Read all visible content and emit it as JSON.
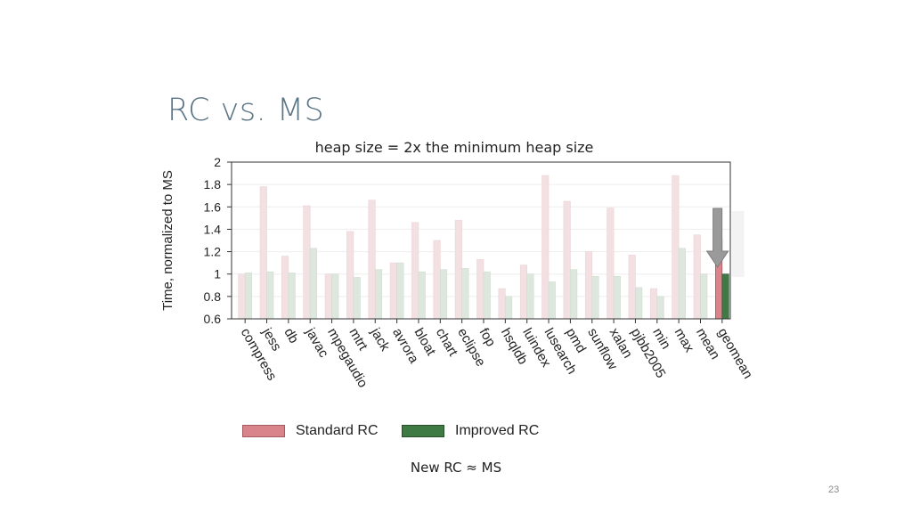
{
  "slide": {
    "title": "RC vs. MS",
    "note": "New RC ≈ MS",
    "page_number": "23"
  },
  "colors": {
    "standard_rc": "#d9848a",
    "improved_rc": "#3f7a44",
    "standard_rc_faded": "#f3e0e2",
    "improved_rc_faded": "#dde7de",
    "arrow": "#9a9a9a"
  },
  "chart_data": {
    "type": "bar",
    "title": "heap size = 2x the minimum heap size",
    "xlabel": "",
    "ylabel": "Time, normalized to MS",
    "ylim": [
      0.6,
      2.0
    ],
    "yticks": [
      "0.6",
      "0.8",
      "1",
      "1.2",
      "1.4",
      "1.6",
      "1.8",
      "2"
    ],
    "categories": [
      "compress",
      "jess",
      "db",
      "javac",
      "mpegaudio",
      "mtrt",
      "jack",
      "avrora",
      "bloat",
      "chart",
      "eclipse",
      "fop",
      "hsqldb",
      "luindex",
      "lusearch",
      "pmd",
      "sunflow",
      "xalan",
      "pjbb2005",
      "min",
      "max",
      "mean",
      "geomean"
    ],
    "series": [
      {
        "name": "Standard RC",
        "values": [
          1.0,
          1.78,
          1.16,
          1.61,
          1.0,
          1.38,
          1.66,
          1.1,
          1.46,
          1.3,
          1.48,
          1.13,
          0.87,
          1.08,
          1.88,
          1.65,
          1.2,
          1.59,
          1.17,
          0.87,
          1.88,
          1.35,
          1.31
        ]
      },
      {
        "name": "Improved RC",
        "values": [
          1.01,
          1.02,
          1.01,
          1.23,
          1.0,
          0.97,
          1.04,
          1.1,
          1.02,
          1.04,
          1.05,
          1.02,
          0.8,
          1.0,
          0.93,
          1.04,
          0.98,
          0.98,
          0.88,
          0.8,
          1.23,
          1.0,
          1.0
        ]
      }
    ],
    "highlighted_category": "geomean",
    "legend": [
      "Standard RC",
      "Improved RC"
    ]
  }
}
